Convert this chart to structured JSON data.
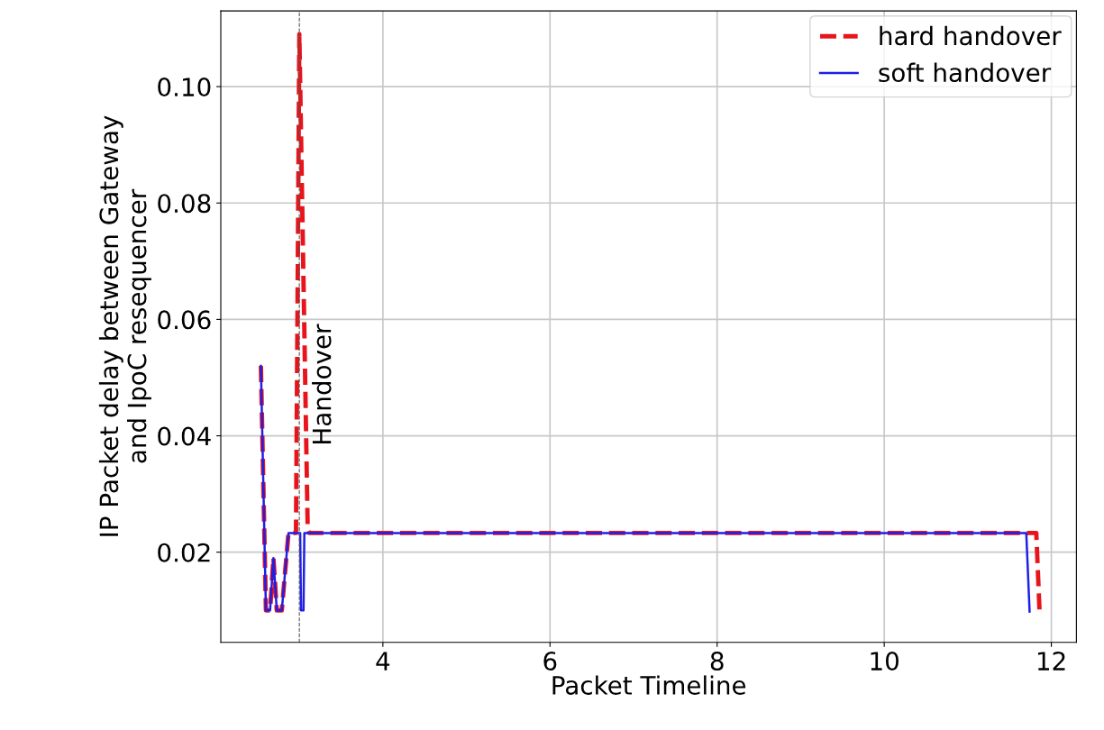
{
  "chart_data": {
    "type": "line",
    "xlabel": "Packet Timeline",
    "ylabel": "IP Packet delay between Gateway\nand IpoC resequencer",
    "xlim": [
      2.06,
      12.3
    ],
    "ylim": [
      0.0045,
      0.113
    ],
    "xticks": [
      4,
      6,
      8,
      10,
      12
    ],
    "yticks": [
      {
        "value": 0.02,
        "label": "0.02"
      },
      {
        "value": 0.04,
        "label": "0.04"
      },
      {
        "value": 0.06,
        "label": "0.06"
      },
      {
        "value": 0.08,
        "label": "0.08"
      },
      {
        "value": 0.1,
        "label": "0.10"
      }
    ],
    "grid": true,
    "legend": "top right",
    "series": [
      {
        "name": "hard handover",
        "color": "#e8141b",
        "line_style": "dashed",
        "x": [
          2.54,
          2.6,
          2.65,
          2.69,
          2.73,
          2.79,
          2.87,
          2.96,
          3.0,
          3.1,
          3.12,
          5.0,
          8.0,
          11.0,
          11.82,
          11.86
        ],
        "values": [
          0.052,
          0.01,
          0.01,
          0.019,
          0.01,
          0.01,
          0.0233,
          0.0233,
          0.109,
          0.024,
          0.0233,
          0.0233,
          0.0233,
          0.0233,
          0.0233,
          0.0095
        ]
      },
      {
        "name": "soft handover",
        "color": "#1f1fe6",
        "line_style": "solid",
        "x": [
          2.54,
          2.6,
          2.65,
          2.69,
          2.73,
          2.79,
          2.87,
          3.01,
          3.02,
          3.05,
          3.06,
          5.0,
          8.0,
          11.0,
          11.7,
          11.74
        ],
        "values": [
          0.052,
          0.01,
          0.01,
          0.019,
          0.01,
          0.01,
          0.0233,
          0.0233,
          0.01,
          0.01,
          0.0233,
          0.0233,
          0.0233,
          0.0233,
          0.0233,
          0.0098
        ]
      }
    ],
    "ref_lines": [
      {
        "axis": "x",
        "value": 3,
        "label": "Handover",
        "color": "#555555",
        "line_style": "dashed"
      }
    ]
  }
}
